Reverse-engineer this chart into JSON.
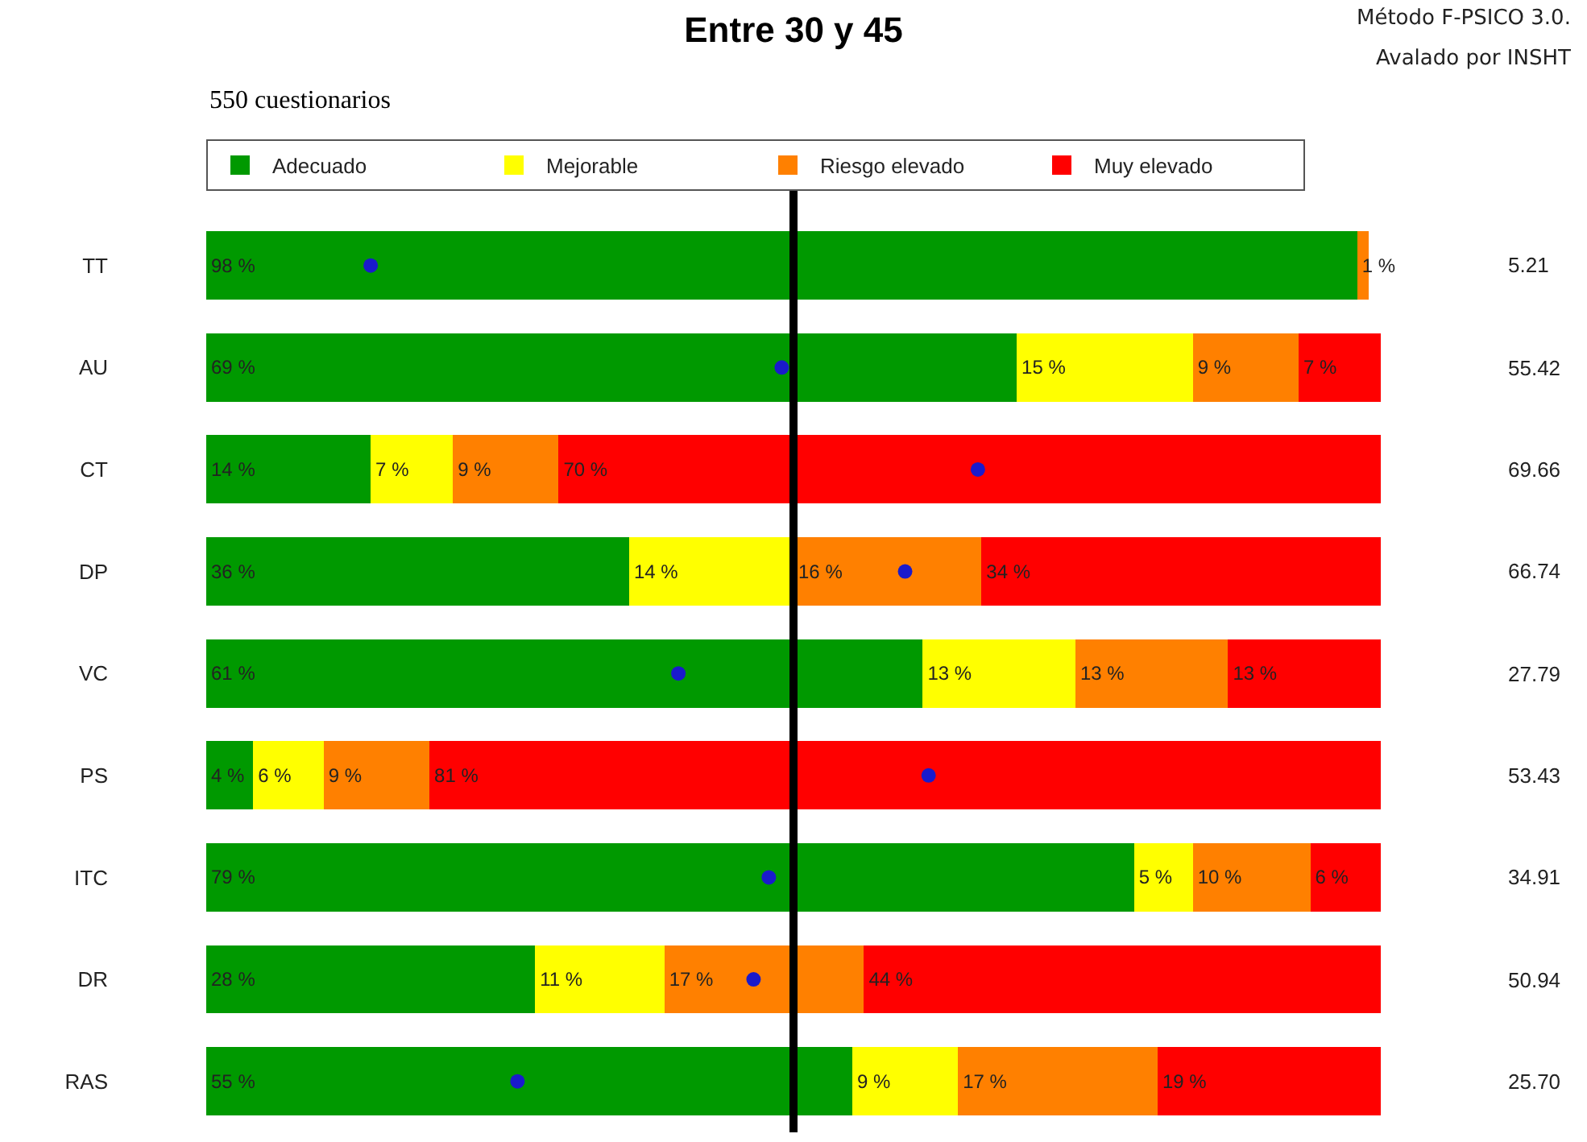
{
  "chart_data": {
    "type": "bar",
    "orientation": "horizontal",
    "stacked": true,
    "title": "Entre 30 y 45",
    "subtitle": "550 cuestionarios",
    "categories": [
      "TT",
      "AU",
      "CT",
      "DP",
      "VC",
      "PS",
      "ITC",
      "DR",
      "RAS"
    ],
    "series": [
      {
        "name": "Adecuado",
        "color": "#009900",
        "values": [
          98,
          69,
          14,
          36,
          61,
          4,
          79,
          28,
          55
        ],
        "value_labels": [
          "98 %",
          "69 %",
          "14 %",
          "36 %",
          "61 %",
          "4 %",
          "79 %",
          "28 %",
          "55 %"
        ]
      },
      {
        "name": "Mejorable",
        "color": "#ffff00",
        "values": [
          0,
          15,
          7,
          14,
          13,
          6,
          5,
          11,
          9
        ],
        "value_labels": [
          null,
          "15 %",
          "7 %",
          "14 %",
          "13 %",
          "6 %",
          "5 %",
          "11 %",
          "9 %"
        ]
      },
      {
        "name": "Riesgo elevado",
        "color": "#ff8000",
        "values": [
          1,
          9,
          9,
          16,
          13,
          9,
          10,
          17,
          17
        ],
        "value_labels": [
          "1 %",
          "9 %",
          "9 %",
          "16 %",
          "13 %",
          "9 %",
          "10 %",
          "17 %",
          "17 %"
        ]
      },
      {
        "name": "Muy elevado",
        "color": "#ff0000",
        "values": [
          0,
          7,
          70,
          34,
          13,
          81,
          6,
          44,
          19
        ],
        "value_labels": [
          null,
          "7 %",
          "70 %",
          "34 %",
          "13 %",
          "81 %",
          "6 %",
          "44 %",
          "19 %"
        ]
      },
      {
        "type": "scatter",
        "color": "#1a1acc",
        "marker": "circle",
        "values": [
          14,
          49,
          65.7,
          59.5,
          40.2,
          61.5,
          47.9,
          46.6,
          26.5
        ]
      }
    ],
    "xlim": [
      0,
      100
    ],
    "tick_labels": "y",
    "legend": "top",
    "ref_lines": [
      {
        "axis": "x",
        "value": 50,
        "color": "#000000"
      }
    ],
    "annotations": [
      "Método F-PSICO 3.0.",
      "Avalado por INSHT",
      "5.21",
      "55.42",
      "69.66",
      "66.74",
      "27.79",
      "53.43",
      "34.91",
      "50.94",
      "25.70"
    ]
  }
}
